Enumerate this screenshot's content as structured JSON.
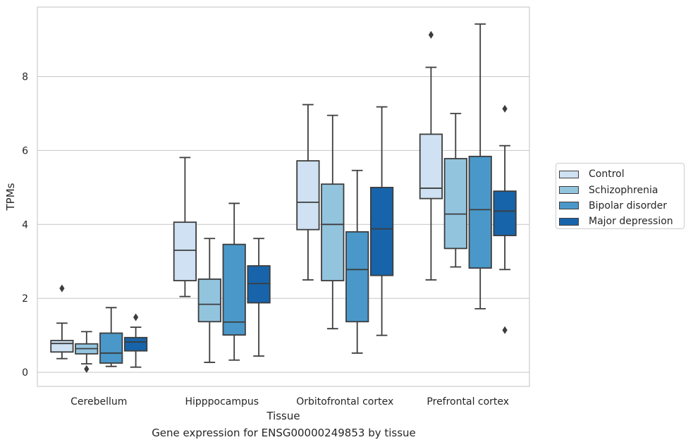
{
  "chart_data": {
    "type": "boxplot",
    "caption": "Gene expression for ENSG00000249853 by tissue",
    "xlabel": "Tissue",
    "ylabel": "TPMs",
    "ylim": [
      -0.38,
      9.88
    ],
    "yticks": [
      0,
      2,
      4,
      6,
      8
    ],
    "grid": "horizontal",
    "legend_position": "right",
    "categories": [
      "Cerebellum",
      "Hipppocampus",
      "Orbitofrontal cortex",
      "Prefrontal cortex"
    ],
    "series": [
      {
        "name": "Control",
        "color": "#cfe1f2",
        "boxes": [
          {
            "whislo": 0.37,
            "q1": 0.55,
            "med": 0.78,
            "q3": 0.86,
            "whishi": 1.33,
            "fliers": [
              2.27
            ]
          },
          {
            "whislo": 2.05,
            "q1": 2.48,
            "med": 3.3,
            "q3": 4.06,
            "whishi": 5.81,
            "fliers": []
          },
          {
            "whislo": 2.5,
            "q1": 3.86,
            "med": 4.6,
            "q3": 5.72,
            "whishi": 7.24,
            "fliers": []
          },
          {
            "whislo": 2.5,
            "q1": 4.7,
            "med": 4.98,
            "q3": 6.44,
            "whishi": 8.25,
            "fliers": [
              9.13
            ]
          }
        ]
      },
      {
        "name": "Schizophrenia",
        "color": "#93c4de",
        "boxes": [
          {
            "whislo": 0.23,
            "q1": 0.5,
            "med": 0.64,
            "q3": 0.77,
            "whishi": 1.1,
            "fliers": [
              0.09
            ]
          },
          {
            "whislo": 0.27,
            "q1": 1.37,
            "med": 1.84,
            "q3": 2.52,
            "whishi": 3.62,
            "fliers": []
          },
          {
            "whislo": 1.18,
            "q1": 2.48,
            "med": 4.0,
            "q3": 5.09,
            "whishi": 6.95,
            "fliers": []
          },
          {
            "whislo": 2.85,
            "q1": 3.35,
            "med": 4.28,
            "q3": 5.78,
            "whishi": 7.0,
            "fliers": []
          }
        ]
      },
      {
        "name": "Bipolar disorder",
        "color": "#4a98c9",
        "boxes": [
          {
            "whislo": 0.16,
            "q1": 0.25,
            "med": 0.52,
            "q3": 1.06,
            "whishi": 1.75,
            "fliers": []
          },
          {
            "whislo": 0.33,
            "q1": 1.01,
            "med": 1.36,
            "q3": 3.46,
            "whishi": 4.57,
            "fliers": []
          },
          {
            "whislo": 0.52,
            "q1": 1.37,
            "med": 2.78,
            "q3": 3.8,
            "whishi": 5.46,
            "fliers": []
          },
          {
            "whislo": 1.72,
            "q1": 2.82,
            "med": 4.4,
            "q3": 5.84,
            "whishi": 9.42,
            "fliers": []
          }
        ]
      },
      {
        "name": "Major depression",
        "color": "#1764ab",
        "boxes": [
          {
            "whislo": 0.14,
            "q1": 0.58,
            "med": 0.82,
            "q3": 0.94,
            "whishi": 1.22,
            "fliers": [
              1.49
            ]
          },
          {
            "whislo": 0.44,
            "q1": 1.88,
            "med": 2.4,
            "q3": 2.88,
            "whishi": 3.62,
            "fliers": []
          },
          {
            "whislo": 1.0,
            "q1": 2.62,
            "med": 3.88,
            "q3": 5.0,
            "whishi": 7.18,
            "fliers": []
          },
          {
            "whislo": 2.78,
            "q1": 3.7,
            "med": 4.36,
            "q3": 4.9,
            "whishi": 6.13,
            "fliers": [
              7.13,
              1.14
            ]
          }
        ]
      }
    ]
  }
}
